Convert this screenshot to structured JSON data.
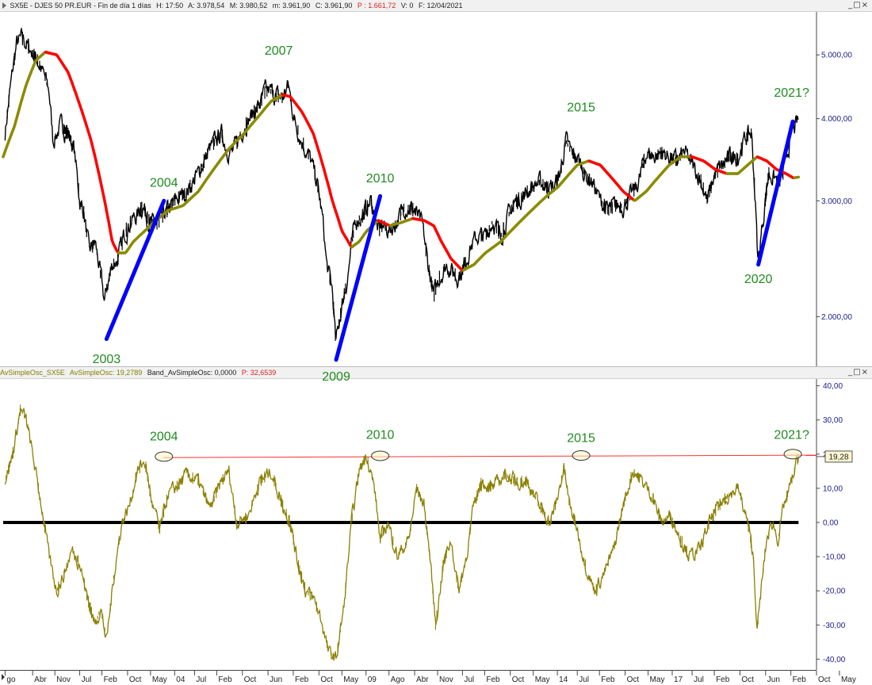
{
  "window_top": {
    "title": "SX5E - DJES 50 PR.EUR - Fin de día 1 días",
    "h": "H: 17:50",
    "a": "A: 3.978,54",
    "m": "M: 3.980,52",
    "mn": "m: 3.961,90",
    "c": "C: 3.961,90",
    "p": "P : 1.661,72",
    "v": "V: 0",
    "f": "F: 12/04/2021",
    "buttons": "_□×"
  },
  "window_bottom": {
    "name": "AvSimpleOsc_SX5E",
    "osc_label": "AvSimpleOsc: 19,2789",
    "band_label": "Band_AvSimpleOsc: 0,0000",
    "p_label": "P: 32,6539",
    "buttons": "_□×"
  },
  "colors": {
    "price": "#000000",
    "ma_up": "#8b8b00",
    "ma_down": "#ff0000",
    "trend": "#0000ff",
    "oscillator": "#8b8000",
    "resistance": "#ff3030",
    "labels": "#1e8c1e",
    "axis": "#1a1a8a"
  },
  "chart_data": [
    {
      "type": "line",
      "scale": "log",
      "title": "SX5E - DJES 50 PR.EUR",
      "y_ticks": [
        "5.000,00",
        "4.000,00",
        "3.000,00",
        "2.000,00"
      ],
      "y_tick_values": [
        5000,
        4000,
        3000,
        2000
      ],
      "ylim": [
        1700,
        5700
      ],
      "xlim": [
        2000.5,
        2021.75
      ],
      "series": [
        {
          "name": "SX5E",
          "x": [
            2000.55,
            2000.7,
            2000.85,
            2001.0,
            2001.2,
            2001.4,
            2001.6,
            2001.7,
            2001.8,
            2002.0,
            2002.2,
            2002.35,
            2002.5,
            2002.6,
            2002.75,
            2002.9,
            2003.05,
            2003.15,
            2003.2,
            2003.35,
            2003.5,
            2003.7,
            2003.85,
            2004.0,
            2004.15,
            2004.3,
            2004.45,
            2004.6,
            2004.8,
            2005.0,
            2005.3,
            2005.6,
            2005.9,
            2006.2,
            2006.35,
            2006.5,
            2006.8,
            2007.0,
            2007.2,
            2007.35,
            2007.5,
            2007.6,
            2007.8,
            2007.95,
            2008.1,
            2008.3,
            2008.5,
            2008.7,
            2008.85,
            2008.95,
            2009.1,
            2009.19,
            2009.3,
            2009.5,
            2009.7,
            2009.9,
            2010.1,
            2010.3,
            2010.4,
            2010.6,
            2010.8,
            2011.0,
            2011.25,
            2011.45,
            2011.6,
            2011.75,
            2011.9,
            2012.1,
            2012.35,
            2012.5,
            2012.7,
            2012.9,
            2013.1,
            2013.3,
            2013.5,
            2013.7,
            2013.9,
            2014.1,
            2014.3,
            2014.5,
            2014.7,
            2014.9,
            2015.05,
            2015.2,
            2015.35,
            2015.55,
            2015.75,
            2015.9,
            2016.1,
            2016.3,
            2016.5,
            2016.7,
            2016.9,
            2017.1,
            2017.3,
            2017.5,
            2017.7,
            2017.9,
            2018.1,
            2018.3,
            2018.5,
            2018.7,
            2018.9,
            2019.1,
            2019.3,
            2019.5,
            2019.7,
            2019.9,
            2020.05,
            2020.15,
            2020.22,
            2020.35,
            2020.5,
            2020.65,
            2020.8,
            2020.9,
            2021.05,
            2021.15,
            2021.28
          ],
          "values": [
            3800,
            4500,
            5200,
            5300,
            5100,
            4900,
            4600,
            4400,
            3700,
            3900,
            3800,
            3600,
            3000,
            2900,
            2500,
            2600,
            2300,
            2100,
            2200,
            2400,
            2450,
            2700,
            2800,
            2850,
            2950,
            2800,
            2750,
            2800,
            2900,
            3000,
            3100,
            3300,
            3600,
            3800,
            3600,
            3550,
            3900,
            4050,
            4200,
            4400,
            4400,
            4350,
            4300,
            4500,
            4000,
            3700,
            3500,
            3200,
            2800,
            2400,
            2200,
            1810,
            2000,
            2300,
            2800,
            2850,
            3000,
            2700,
            2750,
            2700,
            2800,
            2950,
            2900,
            2750,
            2400,
            2150,
            2300,
            2400,
            2300,
            2350,
            2550,
            2650,
            2650,
            2800,
            2650,
            2850,
            3000,
            3050,
            3150,
            3200,
            3150,
            3150,
            3300,
            3700,
            3550,
            3450,
            3250,
            3200,
            3000,
            2900,
            2950,
            2950,
            3050,
            3200,
            3550,
            3500,
            3550,
            3500,
            3450,
            3550,
            3400,
            3250,
            3000,
            3300,
            3400,
            3500,
            3500,
            3750,
            3800,
            3000,
            2400,
            2800,
            3300,
            3250,
            3200,
            3350,
            3700,
            3850,
            3962
          ]
        },
        {
          "name": "MA",
          "x": [
            2000.5,
            2000.8,
            2001.1,
            2001.35,
            2001.6,
            2001.9,
            2002.2,
            2002.5,
            2002.8,
            2003.0,
            2003.2,
            2003.35,
            2003.5,
            2003.7,
            2003.9,
            2004.2,
            2004.5,
            2004.8,
            2005.2,
            2005.6,
            2006.0,
            2006.4,
            2006.8,
            2007.2,
            2007.5,
            2007.8,
            2008.0,
            2008.3,
            2008.6,
            2008.85,
            2009.1,
            2009.35,
            2009.6,
            2009.8,
            2010.0,
            2010.3,
            2010.6,
            2010.9,
            2011.2,
            2011.5,
            2011.75,
            2011.95,
            2012.2,
            2012.5,
            2012.8,
            2013.1,
            2013.5,
            2013.9,
            2014.3,
            2014.7,
            2015.0,
            2015.3,
            2015.5,
            2015.8,
            2016.1,
            2016.4,
            2016.7,
            2017.0,
            2017.3,
            2017.6,
            2017.9,
            2018.2,
            2018.5,
            2018.8,
            2019.1,
            2019.4,
            2019.7,
            2019.95,
            2020.2,
            2020.45,
            2020.7,
            2020.95,
            2021.15,
            2021.28
          ],
          "values": [
            3500,
            3900,
            4500,
            4900,
            5050,
            5000,
            4700,
            4200,
            3700,
            3300,
            2900,
            2600,
            2500,
            2500,
            2600,
            2700,
            2800,
            2900,
            2950,
            3100,
            3350,
            3600,
            3800,
            4050,
            4250,
            4350,
            4320,
            4100,
            3800,
            3400,
            3000,
            2700,
            2550,
            2600,
            2700,
            2800,
            2750,
            2780,
            2820,
            2800,
            2750,
            2600,
            2450,
            2350,
            2400,
            2500,
            2600,
            2750,
            2900,
            3050,
            3150,
            3300,
            3400,
            3450,
            3400,
            3250,
            3100,
            3000,
            3100,
            3250,
            3400,
            3500,
            3500,
            3450,
            3350,
            3300,
            3300,
            3400,
            3500,
            3450,
            3350,
            3300,
            3250,
            3260
          ]
        },
        {
          "name": "trend-lines",
          "segments": [
            {
              "from": [
                2003.2,
                1850
              ],
              "to": [
                2004.7,
                3000
              ]
            },
            {
              "from": [
                2009.2,
                1720
              ],
              "to": [
                2010.35,
                3050
              ]
            },
            {
              "from": [
                2020.23,
                2400
              ],
              "to": [
                2021.13,
                3960
              ]
            }
          ]
        }
      ],
      "annotations": [
        {
          "text": "2003",
          "x": 2003.2,
          "y": 1700
        },
        {
          "text": "2004",
          "x": 2004.7,
          "y": 3150
        },
        {
          "text": "2007",
          "x": 2007.7,
          "y": 5000
        },
        {
          "text": "2009",
          "x": 2009.2,
          "y": 1600
        },
        {
          "text": "2010",
          "x": 2010.35,
          "y": 3200
        },
        {
          "text": "2015",
          "x": 2015.6,
          "y": 4100
        },
        {
          "text": "2020",
          "x": 2020.23,
          "y": 2250
        },
        {
          "text": "2021?",
          "x": 2021.1,
          "y": 4320
        }
      ]
    },
    {
      "type": "line",
      "title": "AvSimpleOsc_SX5E",
      "y_ticks": [
        "40,00",
        "30,00",
        "20,00",
        "10,00",
        "0,00",
        "-10,00",
        "-20,00",
        "-30,00",
        "-40,00"
      ],
      "y_tick_values": [
        40,
        30,
        20,
        10,
        0,
        -10,
        -20,
        -30,
        -40
      ],
      "ylim": [
        -42,
        42
      ],
      "xlim": [
        2000.5,
        2021.75
      ],
      "current_value_label": "19,28",
      "series": [
        {
          "name": "AvSimpleOsc",
          "x": [
            2000.55,
            2000.75,
            2000.95,
            2001.1,
            2001.3,
            2001.5,
            2001.7,
            2001.9,
            2002.1,
            2002.3,
            2002.5,
            2002.7,
            2002.9,
            2003.05,
            2003.2,
            2003.4,
            2003.6,
            2003.8,
            2004.0,
            2004.2,
            2004.4,
            2004.6,
            2004.8,
            2005.0,
            2005.3,
            2005.6,
            2005.9,
            2006.2,
            2006.4,
            2006.6,
            2006.9,
            2007.2,
            2007.5,
            2007.8,
            2008.0,
            2008.2,
            2008.4,
            2008.6,
            2008.8,
            2009.0,
            2009.2,
            2009.4,
            2009.6,
            2009.8,
            2010.0,
            2010.2,
            2010.35,
            2010.55,
            2010.8,
            2011.1,
            2011.3,
            2011.5,
            2011.65,
            2011.8,
            2012.0,
            2012.2,
            2012.4,
            2012.6,
            2012.8,
            2013.0,
            2013.3,
            2013.6,
            2013.9,
            2014.2,
            2014.5,
            2014.8,
            2015.0,
            2015.15,
            2015.3,
            2015.5,
            2015.7,
            2015.95,
            2016.2,
            2016.45,
            2016.7,
            2016.95,
            2017.2,
            2017.45,
            2017.7,
            2017.95,
            2018.2,
            2018.45,
            2018.7,
            2018.95,
            2019.2,
            2019.45,
            2019.7,
            2019.95,
            2020.1,
            2020.2,
            2020.3,
            2020.45,
            2020.6,
            2020.75,
            2020.9,
            2021.05,
            2021.28
          ],
          "values": [
            12,
            20,
            33,
            30,
            18,
            5,
            -10,
            -20,
            -15,
            -8,
            -12,
            -22,
            -30,
            -25,
            -35,
            -15,
            0,
            5,
            15,
            18,
            5,
            -2,
            8,
            10,
            14,
            12,
            4,
            12,
            15,
            0,
            2,
            12,
            15,
            5,
            0,
            -12,
            -20,
            -22,
            -28,
            -38,
            -40,
            -25,
            0,
            15,
            20,
            10,
            -5,
            0,
            -10,
            -5,
            10,
            5,
            -10,
            -30,
            -12,
            -5,
            -20,
            -10,
            5,
            12,
            10,
            14,
            12,
            12,
            5,
            0,
            8,
            16,
            5,
            -2,
            -12,
            -20,
            -15,
            -8,
            5,
            15,
            12,
            8,
            0,
            2,
            -5,
            -10,
            -8,
            0,
            5,
            8,
            10,
            0,
            -10,
            -32,
            -20,
            -5,
            0,
            -5,
            5,
            10,
            19.28
          ]
        },
        {
          "name": "Band_AvSimpleOsc",
          "x": [
            2000.5,
            2021.28
          ],
          "values": [
            0,
            0
          ]
        },
        {
          "name": "resistance",
          "x": [
            2004.7,
            2021.75
          ],
          "values": [
            19.0,
            19.7
          ]
        }
      ],
      "annotations": [
        {
          "text": "2004",
          "x": 2004.7,
          "y": 24
        },
        {
          "text": "2010",
          "x": 2010.35,
          "y": 24.5
        },
        {
          "text": "2015",
          "x": 2015.6,
          "y": 23.5
        },
        {
          "text": "2021?",
          "x": 2021.1,
          "y": 24.5
        }
      ],
      "markers": [
        {
          "x": 2004.7,
          "y": 19.3
        },
        {
          "x": 2010.35,
          "y": 19.5
        },
        {
          "x": 2015.6,
          "y": 19.6
        },
        {
          "x": 2021.13,
          "y": 20
        }
      ]
    }
  ],
  "x_axis_labels": [
    {
      "text": "go",
      "x": 2000.55
    },
    {
      "text": "Abr",
      "x": 2001.27
    },
    {
      "text": "Nov",
      "x": 2001.85
    },
    {
      "text": "Jul",
      "x": 2002.5
    },
    {
      "text": "Feb",
      "x": 2003.08
    },
    {
      "text": "Oct",
      "x": 2003.75
    },
    {
      "text": "May",
      "x": 2004.35
    },
    {
      "text": "04",
      "x": 2004.98
    },
    {
      "text": "Jul",
      "x": 2005.5
    },
    {
      "text": "Feb",
      "x": 2006.08
    },
    {
      "text": "Oct",
      "x": 2006.75
    },
    {
      "text": "Jun",
      "x": 2007.42
    },
    {
      "text": "Feb",
      "x": 2008.08
    },
    {
      "text": "Oct",
      "x": 2008.75
    },
    {
      "text": "May",
      "x": 2009.35
    },
    {
      "text": "09",
      "x": 2009.98
    },
    {
      "text": "Ago",
      "x": 2010.58
    },
    {
      "text": "Abr",
      "x": 2011.25
    },
    {
      "text": "Nov",
      "x": 2011.85
    },
    {
      "text": "Jul",
      "x": 2012.5
    },
    {
      "text": "Feb",
      "x": 2013.08
    },
    {
      "text": "Oct",
      "x": 2013.75
    },
    {
      "text": "May",
      "x": 2014.35
    },
    {
      "text": "14",
      "x": 2014.98
    },
    {
      "text": "Jul",
      "x": 2015.5
    },
    {
      "text": "Feb",
      "x": 2016.08
    },
    {
      "text": "Oct",
      "x": 2016.75
    },
    {
      "text": "May",
      "x": 2017.35
    },
    {
      "text": "17",
      "x": 2017.98
    },
    {
      "text": "Jul",
      "x": 2018.5
    },
    {
      "text": "Feb",
      "x": 2019.08
    },
    {
      "text": "Oct",
      "x": 2019.75
    },
    {
      "text": "Jun",
      "x": 2020.42
    },
    {
      "text": "Feb",
      "x": 2021.08
    },
    {
      "text": "Oct",
      "x": 2021.75
    },
    {
      "text": "May",
      "x": 2022.35
    }
  ]
}
